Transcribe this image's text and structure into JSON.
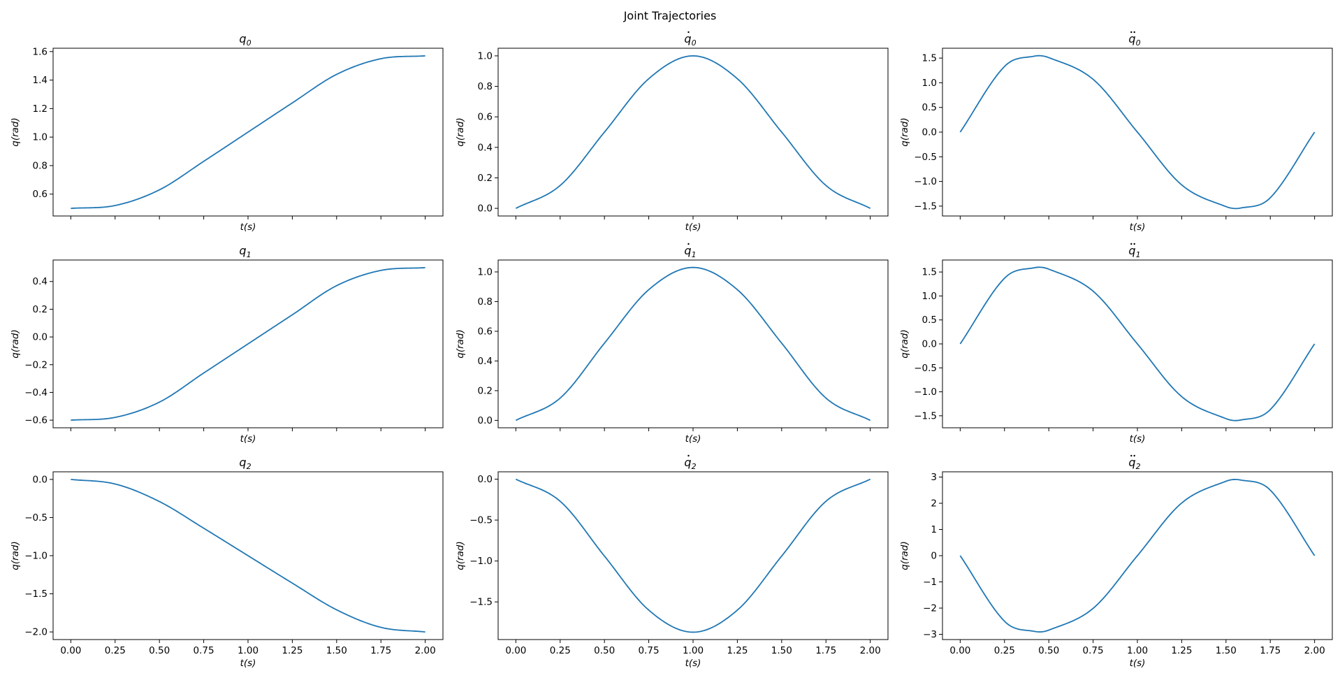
{
  "figure": {
    "title": "Joint Trajectories"
  },
  "colors": {
    "line": "#1f77b4",
    "axes": "#000000"
  },
  "chart_data": [
    {
      "type": "line",
      "title_symbol": "q",
      "title_subscript": "0",
      "derivative": 0,
      "xlabel_base": "t",
      "xlabel_unit": "s",
      "ylabel_base": "q",
      "ylabel_unit": "rad",
      "xlim": [
        -0.1,
        2.1
      ],
      "ylim": [
        0.4465,
        1.6235
      ],
      "yticks": [
        0.6,
        0.8,
        1.0,
        1.2,
        1.4,
        1.6
      ],
      "ytick_labels": [
        "0.6",
        "0.8",
        "1.0",
        "1.2",
        "1.4",
        "1.6"
      ],
      "xticks": [
        0.0,
        0.25,
        0.5,
        0.75,
        1.0,
        1.25,
        1.5,
        1.75,
        2.0
      ],
      "xtick_labels": [],
      "x": [
        0.0,
        0.25,
        0.5,
        0.75,
        1.0,
        1.25,
        1.5,
        1.75,
        2.0
      ],
      "y": [
        0.5,
        0.52,
        0.63,
        0.83,
        1.035,
        1.24,
        1.44,
        1.55,
        1.57
      ]
    },
    {
      "type": "line",
      "title_symbol": "q",
      "title_subscript": "0",
      "derivative": 1,
      "xlabel_base": "t",
      "xlabel_unit": "s",
      "ylabel_base": "q",
      "ylabel_unit": "rad",
      "xlim": [
        -0.1,
        2.1
      ],
      "ylim": [
        -0.05,
        1.05
      ],
      "yticks": [
        0.0,
        0.2,
        0.4,
        0.6,
        0.8,
        1.0
      ],
      "ytick_labels": [
        "0.0",
        "0.2",
        "0.4",
        "0.6",
        "0.8",
        "1.0"
      ],
      "xticks": [
        0.0,
        0.25,
        0.5,
        0.75,
        1.0,
        1.25,
        1.5,
        1.75,
        2.0
      ],
      "xtick_labels": [],
      "x": [
        0.0,
        0.25,
        0.5,
        0.75,
        1.0,
        1.25,
        1.5,
        1.75,
        2.0
      ],
      "y": [
        0.0,
        0.15,
        0.5,
        0.85,
        1.0,
        0.85,
        0.5,
        0.15,
        0.0
      ]
    },
    {
      "type": "line",
      "title_symbol": "q",
      "title_subscript": "0",
      "derivative": 2,
      "xlabel_base": "t",
      "xlabel_unit": "s",
      "ylabel_base": "q",
      "ylabel_unit": "rad",
      "xlim": [
        -0.1,
        2.1
      ],
      "ylim": [
        -1.7,
        1.7
      ],
      "yticks": [
        -1.5,
        -1.0,
        -0.5,
        0.0,
        0.5,
        1.0,
        1.5
      ],
      "ytick_labels": [
        "−1.5",
        "−1.0",
        "−0.5",
        "0.0",
        "0.5",
        "1.0",
        "1.5"
      ],
      "xticks": [
        0.0,
        0.25,
        0.5,
        0.75,
        1.0,
        1.25,
        1.5,
        1.75,
        2.0
      ],
      "xtick_labels": [],
      "x": [
        0.0,
        0.25,
        0.42,
        0.5,
        0.75,
        1.0,
        1.25,
        1.5,
        1.58,
        1.75,
        2.0
      ],
      "y": [
        0.0,
        1.33,
        1.54,
        1.51,
        1.07,
        0.0,
        -1.07,
        -1.51,
        -1.54,
        -1.33,
        0.0
      ]
    },
    {
      "type": "line",
      "title_symbol": "q",
      "title_subscript": "1",
      "derivative": 0,
      "xlabel_base": "t",
      "xlabel_unit": "s",
      "ylabel_base": "q",
      "ylabel_unit": "rad",
      "xlim": [
        -0.1,
        2.1
      ],
      "ylim": [
        -0.655,
        0.555
      ],
      "yticks": [
        -0.6,
        -0.4,
        -0.2,
        0.0,
        0.2,
        0.4
      ],
      "ytick_labels": [
        "−0.6",
        "−0.4",
        "−0.2",
        "0.0",
        "0.2",
        "0.4"
      ],
      "xticks": [
        0.0,
        0.25,
        0.5,
        0.75,
        1.0,
        1.25,
        1.5,
        1.75,
        2.0
      ],
      "xtick_labels": [],
      "x": [
        0.0,
        0.25,
        0.5,
        0.75,
        1.0,
        1.25,
        1.5,
        1.75,
        2.0
      ],
      "y": [
        -0.6,
        -0.58,
        -0.47,
        -0.26,
        -0.05,
        0.16,
        0.37,
        0.48,
        0.5
      ]
    },
    {
      "type": "line",
      "title_symbol": "q",
      "title_subscript": "1",
      "derivative": 1,
      "xlabel_base": "t",
      "xlabel_unit": "s",
      "ylabel_base": "q",
      "ylabel_unit": "rad",
      "xlim": [
        -0.1,
        2.1
      ],
      "ylim": [
        -0.05,
        1.08
      ],
      "yticks": [
        0.0,
        0.2,
        0.4,
        0.6,
        0.8,
        1.0
      ],
      "ytick_labels": [
        "0.0",
        "0.2",
        "0.4",
        "0.6",
        "0.8",
        "1.0"
      ],
      "xticks": [
        0.0,
        0.25,
        0.5,
        0.75,
        1.0,
        1.25,
        1.5,
        1.75,
        2.0
      ],
      "xtick_labels": [],
      "x": [
        0.0,
        0.25,
        0.5,
        0.75,
        1.0,
        1.25,
        1.5,
        1.75,
        2.0
      ],
      "y": [
        0.0,
        0.15,
        0.52,
        0.88,
        1.03,
        0.88,
        0.52,
        0.15,
        0.0
      ]
    },
    {
      "type": "line",
      "title_symbol": "q",
      "title_subscript": "1",
      "derivative": 2,
      "xlabel_base": "t",
      "xlabel_unit": "s",
      "ylabel_base": "q",
      "ylabel_unit": "rad",
      "xlim": [
        -0.1,
        2.1
      ],
      "ylim": [
        -1.75,
        1.75
      ],
      "yticks": [
        -1.5,
        -1.0,
        -0.5,
        0.0,
        0.5,
        1.0,
        1.5
      ],
      "ytick_labels": [
        "−1.5",
        "−1.0",
        "−0.5",
        "0.0",
        "0.5",
        "1.0",
        "1.5"
      ],
      "xticks": [
        0.0,
        0.25,
        0.5,
        0.75,
        1.0,
        1.25,
        1.5,
        1.75,
        2.0
      ],
      "xtick_labels": [],
      "x": [
        0.0,
        0.25,
        0.42,
        0.5,
        0.75,
        1.0,
        1.25,
        1.5,
        1.58,
        1.75,
        2.0
      ],
      "y": [
        0.0,
        1.37,
        1.59,
        1.56,
        1.1,
        0.0,
        -1.1,
        -1.56,
        -1.59,
        -1.37,
        0.0
      ]
    },
    {
      "type": "line",
      "title_symbol": "q",
      "title_subscript": "2",
      "derivative": 0,
      "xlabel_base": "t",
      "xlabel_unit": "s",
      "ylabel_base": "q",
      "ylabel_unit": "rad",
      "xlim": [
        -0.1,
        2.1
      ],
      "ylim": [
        -2.1,
        0.1
      ],
      "yticks": [
        -2.0,
        -1.5,
        -1.0,
        -0.5,
        0.0
      ],
      "ytick_labels": [
        "−2.0",
        "−1.5",
        "−1.0",
        "−0.5",
        "0.0"
      ],
      "xticks": [
        0.0,
        0.25,
        0.5,
        0.75,
        1.0,
        1.25,
        1.5,
        1.75,
        2.0
      ],
      "xtick_labels": [
        "0.00",
        "0.25",
        "0.50",
        "0.75",
        "1.00",
        "1.25",
        "1.50",
        "1.75",
        "2.00"
      ],
      "x": [
        0.0,
        0.25,
        0.5,
        0.75,
        1.0,
        1.25,
        1.5,
        1.75,
        2.0
      ],
      "y": [
        0.0,
        -0.06,
        -0.29,
        -0.64,
        -1.0,
        -1.36,
        -1.71,
        -1.94,
        -2.0
      ]
    },
    {
      "type": "line",
      "title_symbol": "q",
      "title_subscript": "2",
      "derivative": 1,
      "xlabel_base": "t",
      "xlabel_unit": "s",
      "ylabel_base": "q",
      "ylabel_unit": "rad",
      "xlim": [
        -0.1,
        2.1
      ],
      "ylim": [
        -1.96,
        0.09
      ],
      "yticks": [
        -1.5,
        -1.0,
        -0.5,
        0.0
      ],
      "ytick_labels": [
        "−1.5",
        "−1.0",
        "−0.5",
        "0.0"
      ],
      "xticks": [
        0.0,
        0.25,
        0.5,
        0.75,
        1.0,
        1.25,
        1.5,
        1.75,
        2.0
      ],
      "xtick_labels": [
        "0.00",
        "0.25",
        "0.50",
        "0.75",
        "1.00",
        "1.25",
        "1.50",
        "1.75",
        "2.00"
      ],
      "x": [
        0.0,
        0.25,
        0.5,
        0.75,
        1.0,
        1.25,
        1.5,
        1.75,
        2.0
      ],
      "y": [
        0.0,
        -0.27,
        -0.94,
        -1.6,
        -1.87,
        -1.6,
        -0.94,
        -0.27,
        0.0
      ]
    },
    {
      "type": "line",
      "title_symbol": "q",
      "title_subscript": "2",
      "derivative": 2,
      "xlabel_base": "t",
      "xlabel_unit": "s",
      "ylabel_base": "q",
      "ylabel_unit": "rad",
      "xlim": [
        -0.1,
        2.1
      ],
      "ylim": [
        -3.2,
        3.2
      ],
      "yticks": [
        -3,
        -2,
        -1,
        0,
        1,
        2,
        3
      ],
      "ytick_labels": [
        "−3",
        "−2",
        "−1",
        "0",
        "1",
        "2",
        "3"
      ],
      "xticks": [
        0.0,
        0.25,
        0.5,
        0.75,
        1.0,
        1.25,
        1.5,
        1.75,
        2.0
      ],
      "xtick_labels": [
        "0.00",
        "0.25",
        "0.50",
        "0.75",
        "1.00",
        "1.25",
        "1.50",
        "1.75",
        "2.00"
      ],
      "x": [
        0.0,
        0.25,
        0.42,
        0.5,
        0.75,
        1.0,
        1.25,
        1.5,
        1.58,
        1.75,
        2.0
      ],
      "y": [
        0.0,
        -2.5,
        -2.89,
        -2.84,
        -2.01,
        0.0,
        2.01,
        2.84,
        2.89,
        2.5,
        0.0
      ]
    }
  ]
}
